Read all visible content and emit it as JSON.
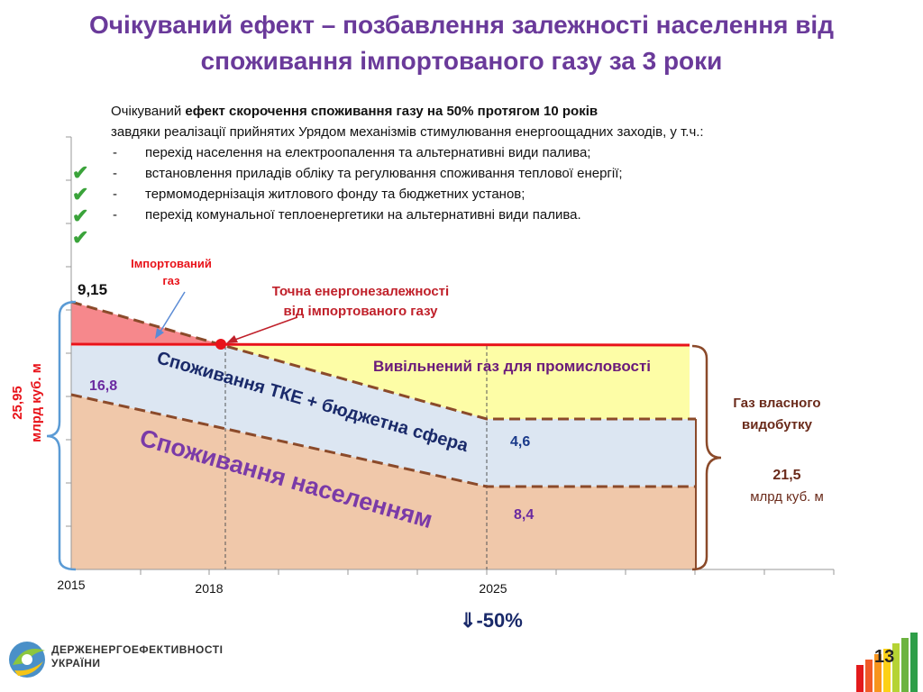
{
  "title": "Очікуваний ефект – позбавлення залежності населення від споживання імпортованого газу за 3 роки",
  "intro": {
    "line1_normal": "Очікуваний ",
    "line1_bold": "ефект скорочення споживання газу на 50% протягом 10 років",
    "line2": "завдяки реалізації прийнятих Урядом механізмів  стимулювання енергоощадних заходів, у т.ч.:",
    "bullets": [
      "перехід населення на електроопалення та альтернативні види палива;",
      "встановлення приладів обліку та регулювання споживання теплової енергії;",
      "термомодернізація житлового фонду та бюджетних установ;",
      "перехід комунальної теплоенергетики на альтернативні види палива."
    ],
    "dash": "-"
  },
  "checkmark": "✔",
  "chart_data": {
    "type": "area",
    "x_ticks": [
      "2015",
      "2018",
      "2025"
    ],
    "regions": {
      "population": "Споживання населенням",
      "tke": "Споживання ТКЕ + бюджетна сфера",
      "freed": "Вивільнений газ для промисловості",
      "imported": "Імпортований газ"
    },
    "values": {
      "imported_2015": "9,15",
      "tke_2015": "16,8",
      "tke_2025": "4,6",
      "population_2025": "8,4"
    },
    "annotations": {
      "independence_point": "Точна енергонезалежності від імпортованого газу",
      "imported_label": "Імпортований газ"
    },
    "left_brace": {
      "value": "25,95",
      "unit": "млрд куб. м"
    },
    "right_brace": {
      "label": "Газ власного видобутку",
      "value": "21,5",
      "unit": "млрд куб. м"
    },
    "colors": {
      "population": "#f0c8aa",
      "tke": "#dce6f2",
      "freed": "#fdfda6",
      "imported": "#f6888c",
      "own_production_line": "#e8131a",
      "dashed": "#8b4a2a",
      "brace_left": "#5b9bd5",
      "brace_right": "#8b4a2a"
    }
  },
  "reduction": "-50%",
  "reduction_arrow": "⇓",
  "footer": {
    "org_line1": "ДЕРЖЕНЕРГОЕФЕКТИВНОСТІ",
    "org_line2": "УКРАЇНИ"
  },
  "page_number": "13"
}
